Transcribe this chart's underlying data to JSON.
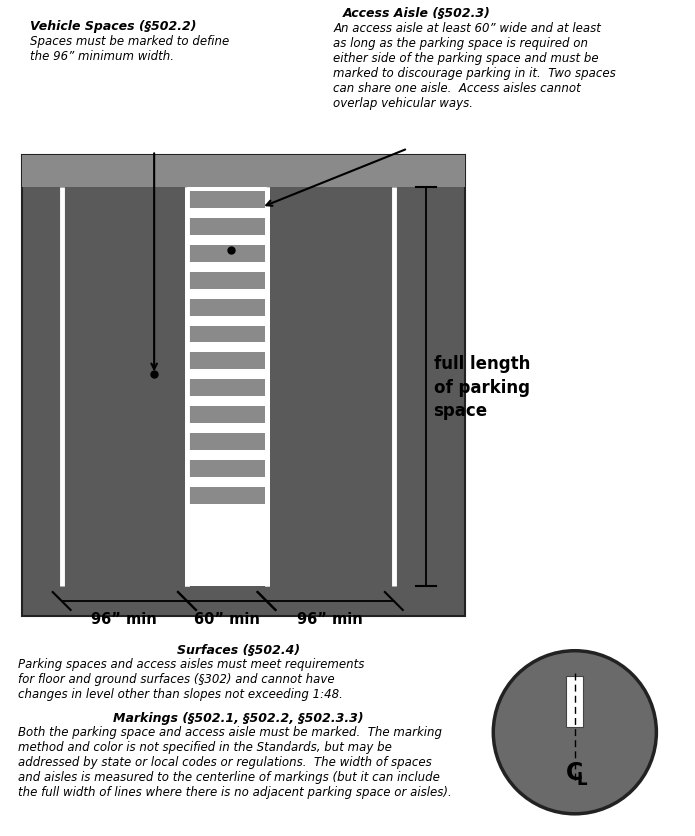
{
  "fig_width": 6.95,
  "fig_height": 8.37,
  "bg_color": "#ffffff",
  "parking_bg": "#5a5a5a",
  "curb_color": "#8a8a8a",
  "stripe_gray": "#8a8a8a",
  "title_access_aisle": "Access Aisle (§502.3)",
  "text_access_aisle": "An access aisle at least 60” wide and at least\nas long as the parking space is required on\neither side of the parking space and must be\nmarked to discourage parking in it.  Two spaces\ncan share one aisle.  Access aisles cannot\noverlap vehicular ways.",
  "title_vehicle_spaces": "Vehicle Spaces (§502.2)",
  "text_vehicle_spaces": "Spaces must be marked to define\nthe 96” minimum width.",
  "title_surfaces": "Surfaces (§502.4)",
  "text_surfaces": "Parking spaces and access aisles must meet requirements\nfor floor and ground surfaces (§302) and cannot have\nchanges in level other than slopes not exceeding 1:48.",
  "title_markings": "Markings (§502.1, §502.2, §502.3.3)",
  "text_markings": "Both the parking space and access aisle must be marked.  The marking\nmethod and color is not specified in the Standards, but may be\naddressed by state or local codes or regulations.  The width of spaces\nand aisles is measured to the centerline of markings (but it can include\nthe full width of lines where there is no adjacent parking space or aisles).",
  "label_96_left": "96” min",
  "label_60": "60” min",
  "label_96_right": "96” min",
  "label_full_length": "full length\nof parking\nspace"
}
